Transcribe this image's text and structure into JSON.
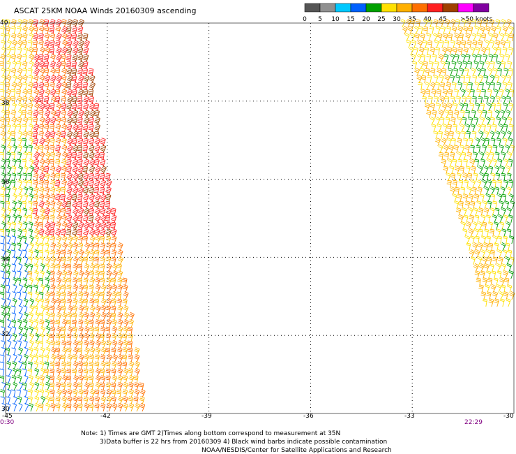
{
  "title": "ASCAT 25KM NOAA Winds 20160309 ascending",
  "scale": {
    "colors": [
      "#555555",
      "#909090",
      "#00c8ff",
      "#0060ff",
      "#00a000",
      "#ffe000",
      "#ffb000",
      "#ff7000",
      "#ff2020",
      "#a04000",
      "#ff00ff",
      "#8000a0"
    ],
    "labels": [
      "0",
      "5",
      "10",
      "15",
      "20",
      "25",
      "30",
      "35",
      "40",
      "45"
    ],
    "unit_label": ">50 knots"
  },
  "times": {
    "left": "0:30",
    "right": "22:29"
  },
  "notes": [
    "Note: 1) Times are GMT 2)Times along bottom correspond to measurement at 35N",
    "3)Data buffer is 22 hrs from 20160309 4) Black wind barbs indicate possible contamination",
    "NOAA/NESDIS/Center for Satellite Applications and Research"
  ],
  "chart_data": {
    "type": "scatter",
    "title": "ASCAT 25KM NOAA Winds 20160309 ascending",
    "xlim": [
      -45,
      -30
    ],
    "ylim": [
      30,
      40
    ],
    "x_ticks": [
      -45,
      -42,
      -39,
      -36,
      -33,
      -30
    ],
    "x_tick_labels": [
      "-45",
      "-42",
      "-39",
      "-36",
      "-33",
      "-30"
    ],
    "y_ticks": [
      30,
      32,
      34,
      36,
      38,
      40
    ],
    "y_tick_labels": [
      "30",
      "32",
      "34",
      "36",
      "38",
      "40"
    ],
    "grid": true,
    "series": [
      {
        "swath": "west",
        "times_gmt": "0:30",
        "lon_range": [
          -45,
          -41.1
        ],
        "lat_range": [
          30,
          40
        ],
        "dominant_speeds_kt": [
          15,
          20,
          25,
          30,
          35
        ]
      },
      {
        "swath": "east",
        "times_gmt": "22:29",
        "lon_range": [
          -33.2,
          -30
        ],
        "lat_range": [
          32.5,
          40
        ],
        "dominant_speeds_kt": [
          20,
          25
        ]
      }
    ]
  }
}
